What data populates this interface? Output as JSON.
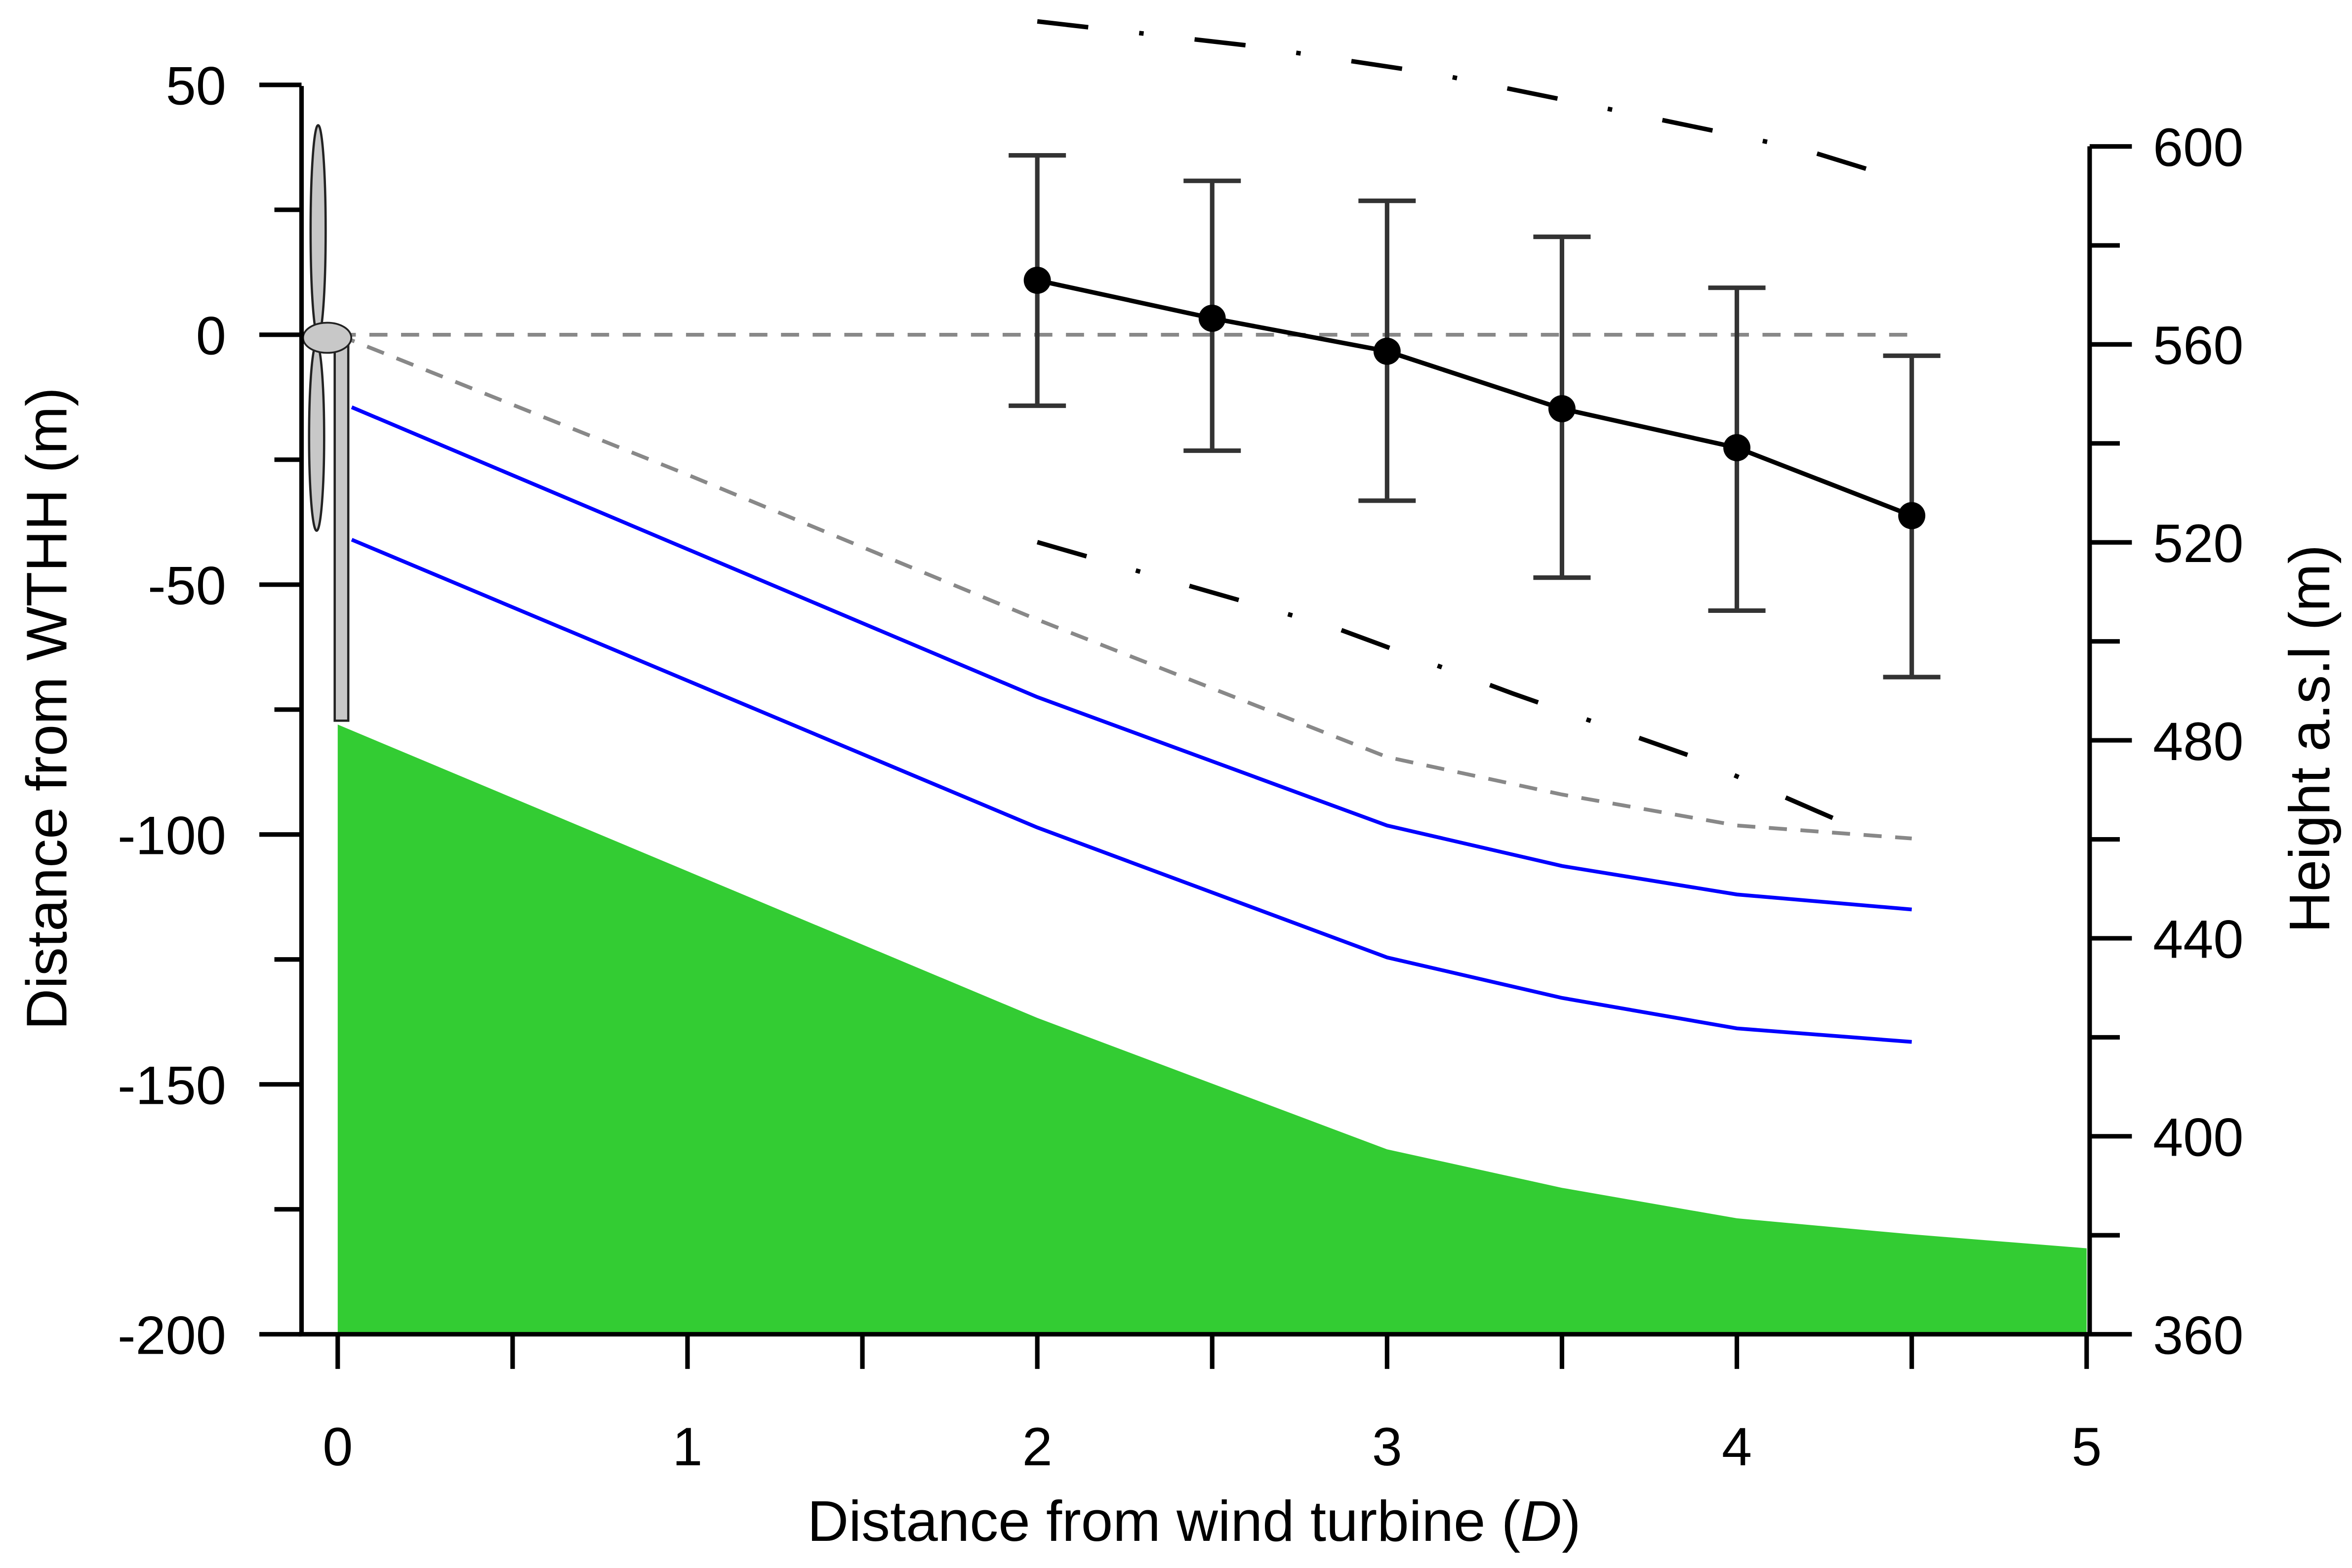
{
  "chart_data": {
    "type": "line",
    "xlabel_parts": [
      "Distance from wind turbine (",
      "D",
      ")"
    ],
    "ylabel": "Distance from WTHH (m)",
    "ylabel_right": "Height a.s.l (m)",
    "xlim": [
      -0.1,
      5
    ],
    "ylim": [
      -200,
      50
    ],
    "ylim_right": [
      360,
      612
    ],
    "x_ticks": [
      "0",
      "1",
      "2",
      "3",
      "4",
      "5"
    ],
    "y_ticks": [
      "50",
      "0",
      "-50",
      "-100",
      "-150",
      "-200"
    ],
    "y_ticks_right": [
      "600",
      "560",
      "520",
      "480",
      "440",
      "400",
      "360"
    ],
    "grid": false,
    "colors": {
      "terrain": "#33cc33",
      "blue_lines": "#0000ff",
      "gray_dashed": "#888888",
      "measurements": "#000000",
      "error_bars": "#333333",
      "turbine": "#c8c8c8"
    },
    "series": [
      {
        "style": "filled-area",
        "x": [
          0,
          2,
          3,
          3.5,
          4,
          4.5,
          5
        ],
        "y": [
          -78,
          -136.7,
          -163,
          -170.7,
          -176.8,
          -180,
          -182.8
        ]
      },
      {
        "style": "solid-blue",
        "x": [
          0.04,
          2,
          3,
          3.5,
          4,
          4.5
        ],
        "y": [
          -14.5,
          -72.5,
          -98.2,
          -106.3,
          -112,
          -115
        ]
      },
      {
        "style": "solid-blue",
        "x": [
          0.04,
          2,
          3,
          3.5,
          4,
          4.5
        ],
        "y": [
          -41,
          -98.6,
          -124.6,
          -132.7,
          -138.8,
          -141.5
        ]
      },
      {
        "style": "gray-dashed",
        "x": [
          0,
          4.5
        ],
        "y": [
          0,
          0
        ]
      },
      {
        "style": "gray-dashed",
        "x": [
          0,
          1,
          2,
          3,
          3.5,
          4,
          4.5
        ],
        "y": [
          0,
          -28,
          -57,
          -84.5,
          -92,
          -98.2,
          -100.8
        ]
      },
      {
        "style": "black-dash-dot",
        "x": [
          2,
          2.6,
          3.14,
          3.66,
          4.19,
          4.44
        ],
        "y": [
          62.7,
          57.9,
          52.2,
          44.8,
          37.1,
          31.7
        ]
      },
      {
        "style": "black-dash-dot",
        "x": [
          2,
          2.85,
          3.36,
          3.86,
          4.35
        ],
        "y": [
          -41.5,
          -58.6,
          -71.8,
          -84.1,
          -99
        ]
      },
      {
        "style": "black-markers-errorbars",
        "x": [
          2,
          2.5,
          3,
          3.5,
          4,
          4.5
        ],
        "y": [
          10.9,
          3.3,
          -3.3,
          -14.8,
          -22.6,
          -36.2
        ],
        "err_high": [
          35.9,
          30.8,
          26.8,
          19.6,
          9.4,
          -4.2
        ],
        "err_low": [
          -14.2,
          -23.2,
          -33.2,
          -48.6,
          -55.2,
          -68.5
        ]
      }
    ],
    "annotations": [
      "wind-turbine-icon at x=0, hub at 0 m"
    ]
  }
}
